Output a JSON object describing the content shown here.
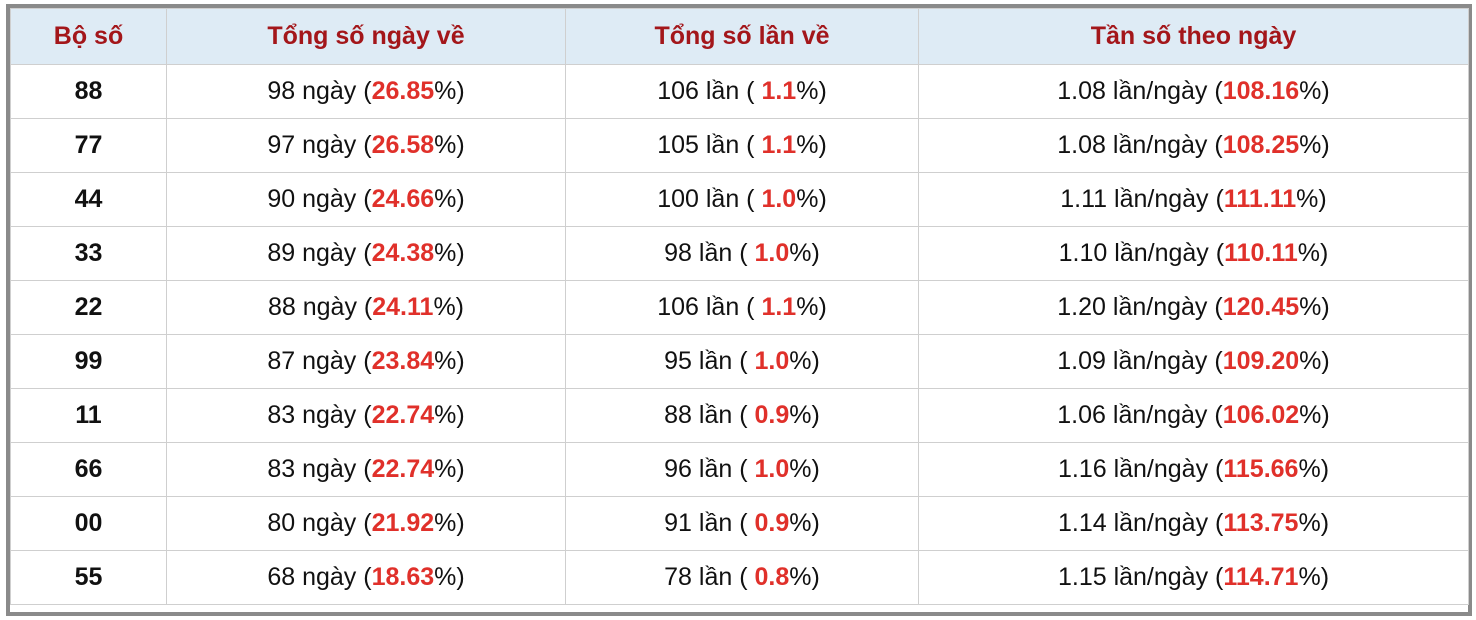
{
  "table": {
    "header": [
      "Bộ số",
      "Tổng số ngày về",
      "Tổng số lần về",
      "Tần số theo ngày"
    ],
    "rows": [
      [
        "88",
        [
          "98 ngày (",
          "26.85",
          "%)"
        ],
        [
          "106 lần ( ",
          "1.1",
          "%)"
        ],
        [
          "1.08 lần/ngày (",
          "108.16",
          "%)"
        ]
      ],
      [
        "77",
        [
          "97 ngày (",
          "26.58",
          "%)"
        ],
        [
          "105 lần ( ",
          "1.1",
          "%)"
        ],
        [
          "1.08 lần/ngày (",
          "108.25",
          "%)"
        ]
      ],
      [
        "44",
        [
          "90 ngày (",
          "24.66",
          "%)"
        ],
        [
          "100 lần ( ",
          "1.0",
          "%)"
        ],
        [
          "1.11 lần/ngày (",
          "111.11",
          "%)"
        ]
      ],
      [
        "33",
        [
          "89 ngày (",
          "24.38",
          "%)"
        ],
        [
          "98 lần ( ",
          "1.0",
          "%)"
        ],
        [
          "1.10 lần/ngày (",
          "110.11",
          "%)"
        ]
      ],
      [
        "22",
        [
          "88 ngày (",
          "24.11",
          "%)"
        ],
        [
          "106 lần ( ",
          "1.1",
          "%)"
        ],
        [
          "1.20 lần/ngày (",
          "120.45",
          "%)"
        ]
      ],
      [
        "99",
        [
          "87 ngày (",
          "23.84",
          "%)"
        ],
        [
          "95 lần ( ",
          "1.0",
          "%)"
        ],
        [
          "1.09 lần/ngày (",
          "109.20",
          "%)"
        ]
      ],
      [
        "11",
        [
          "83 ngày (",
          "22.74",
          "%)"
        ],
        [
          "88 lần ( ",
          "0.9",
          "%)"
        ],
        [
          "1.06 lần/ngày (",
          "106.02",
          "%)"
        ]
      ],
      [
        "66",
        [
          "83 ngày (",
          "22.74",
          "%)"
        ],
        [
          "96 lần ( ",
          "1.0",
          "%)"
        ],
        [
          "1.16 lần/ngày (",
          "115.66",
          "%)"
        ]
      ],
      [
        "00",
        [
          "80 ngày (",
          "21.92",
          "%)"
        ],
        [
          "91 lần ( ",
          "0.9",
          "%)"
        ],
        [
          "1.14 lần/ngày (",
          "113.75",
          "%)"
        ]
      ],
      [
        "55",
        [
          "68 ngày (",
          "18.63",
          "%)"
        ],
        [
          "78 lần ( ",
          "0.8",
          "%)"
        ],
        [
          "1.15 lần/ngày (",
          "114.71",
          "%)"
        ]
      ]
    ]
  }
}
